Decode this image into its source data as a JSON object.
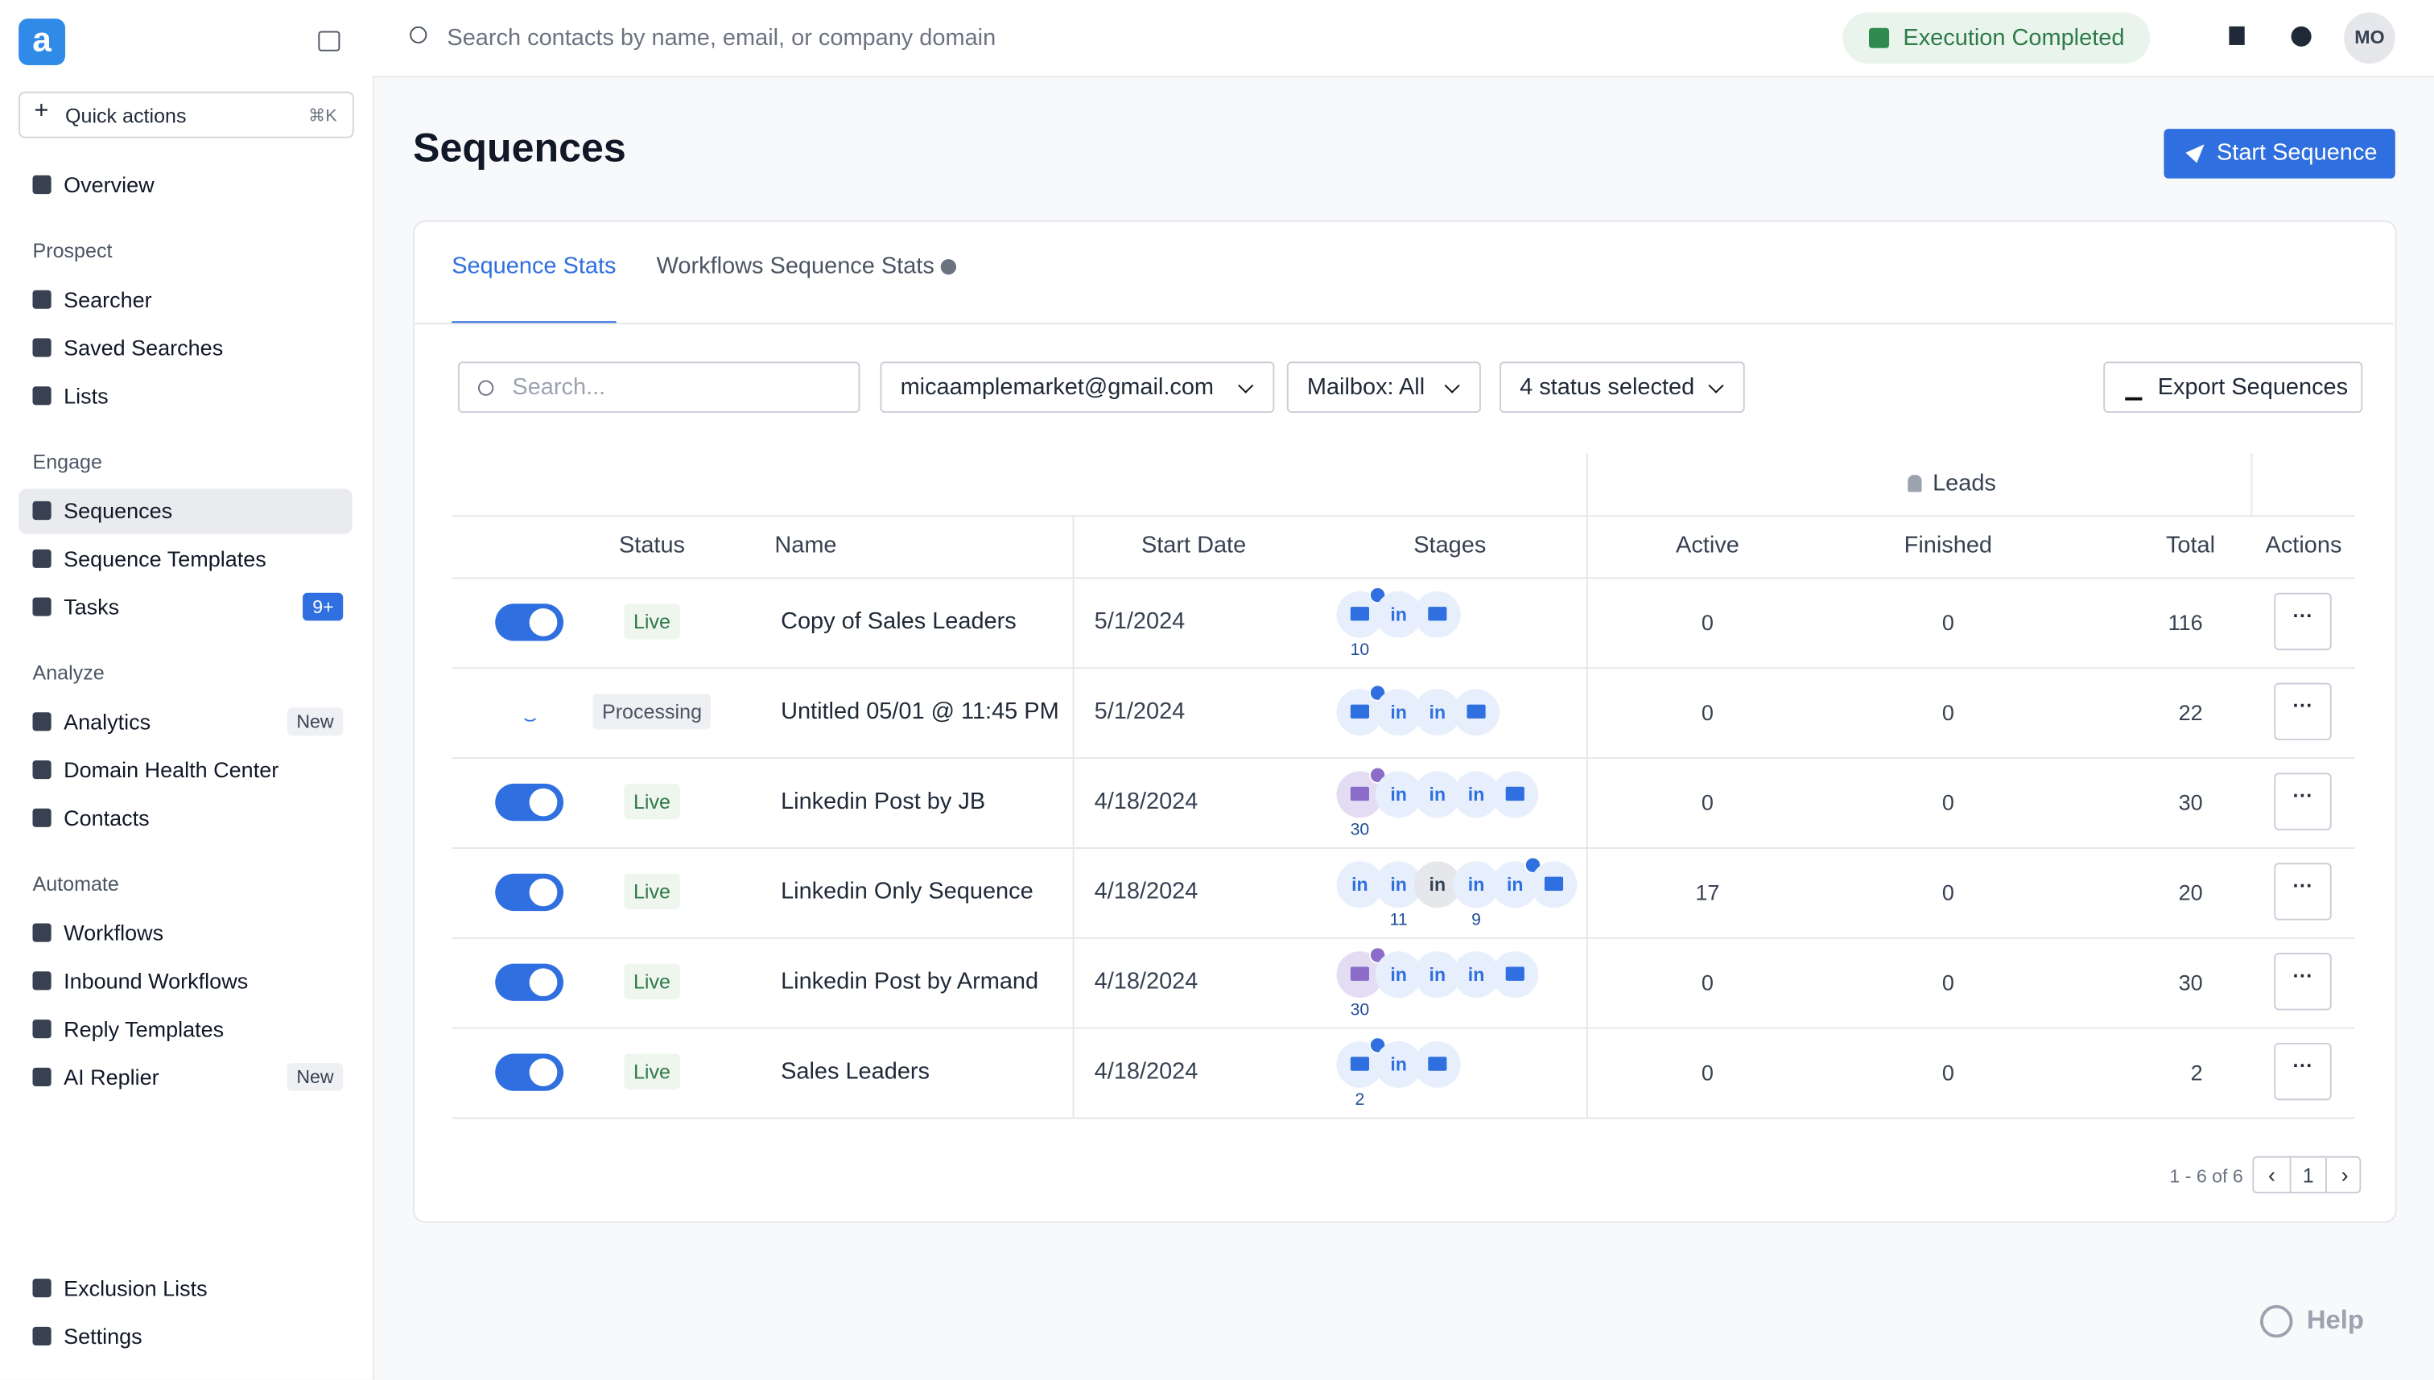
{
  "sidebar": {
    "logo": "a",
    "quick_actions": {
      "label": "Quick actions",
      "shortcut": "⌘K"
    },
    "top_items": [
      {
        "label": "Overview"
      }
    ],
    "sections": [
      {
        "title": "Prospect",
        "items": [
          {
            "label": "Searcher"
          },
          {
            "label": "Saved Searches"
          },
          {
            "label": "Lists"
          }
        ]
      },
      {
        "title": "Engage",
        "items": [
          {
            "label": "Sequences",
            "active": true
          },
          {
            "label": "Sequence Templates"
          },
          {
            "label": "Tasks",
            "badge": "9+",
            "badge_color": "#2f6fdf"
          }
        ]
      },
      {
        "title": "Analyze",
        "items": [
          {
            "label": "Analytics",
            "badge": "New",
            "badge_color": "#eef0f3"
          },
          {
            "label": "Domain Health Center"
          },
          {
            "label": "Contacts"
          }
        ]
      },
      {
        "title": "Automate",
        "items": [
          {
            "label": "Workflows"
          },
          {
            "label": "Inbound Workflows"
          },
          {
            "label": "Reply Templates"
          },
          {
            "label": "AI Replier",
            "badge": "New",
            "badge_color": "#eef0f3"
          }
        ]
      }
    ],
    "bottom_items": [
      {
        "label": "Exclusion Lists"
      },
      {
        "label": "Settings"
      }
    ]
  },
  "topbar": {
    "search_placeholder": "Search contacts by name, email, or company domain",
    "status": "Execution Completed",
    "avatar": "MO"
  },
  "page": {
    "title": "Sequences",
    "primary_button": "Start Sequence"
  },
  "tabs": [
    {
      "label": "Sequence Stats",
      "active": true
    },
    {
      "label": "Workflows Sequence Stats"
    }
  ],
  "filters": {
    "search_placeholder": "Search...",
    "mailbox_account": "micaamplemarket@gmail.com",
    "mailbox": "Mailbox: All",
    "status": "4 status selected",
    "export": "Export Sequences"
  },
  "table": {
    "group_header": "Leads",
    "columns": [
      "Status",
      "Name",
      "Start Date",
      "Stages",
      "Active",
      "Finished",
      "Total",
      "Actions"
    ],
    "rows": [
      {
        "enabled": true,
        "status": "Live",
        "name": "Copy of Sales Leaders",
        "start_date": "5/1/2024",
        "stages": [
          {
            "type": "email",
            "count": 10,
            "badge": true
          },
          {
            "type": "linkedin"
          },
          {
            "type": "email"
          }
        ],
        "active": 0,
        "finished": 0,
        "total": 116
      },
      {
        "enabled": false,
        "status": "Processing",
        "name": "Untitled 05/01 @ 11:45 PM",
        "start_date": "5/1/2024",
        "stages": [
          {
            "type": "email",
            "badge": true
          },
          {
            "type": "linkedin"
          },
          {
            "type": "linkedin"
          },
          {
            "type": "email"
          }
        ],
        "active": 0,
        "finished": 0,
        "total": 22
      },
      {
        "enabled": true,
        "status": "Live",
        "name": "Linkedin Post by JB",
        "start_date": "4/18/2024",
        "stages": [
          {
            "type": "email",
            "count": 30,
            "badge": true,
            "style": "purple"
          },
          {
            "type": "linkedin"
          },
          {
            "type": "linkedin"
          },
          {
            "type": "linkedin"
          },
          {
            "type": "email"
          }
        ],
        "active": 0,
        "finished": 0,
        "total": 30
      },
      {
        "enabled": true,
        "status": "Live",
        "name": "Linkedin Only Sequence",
        "start_date": "4/18/2024",
        "stages": [
          {
            "type": "linkedin"
          },
          {
            "type": "linkedin",
            "count": 11
          },
          {
            "type": "linkedin",
            "style": "grey"
          },
          {
            "type": "linkedin",
            "count": 9
          },
          {
            "type": "linkedin",
            "badge": true
          },
          {
            "type": "email"
          }
        ],
        "active": 17,
        "finished": 0,
        "total": 20
      },
      {
        "enabled": true,
        "status": "Live",
        "name": "Linkedin Post by Armand",
        "start_date": "4/18/2024",
        "stages": [
          {
            "type": "email",
            "count": 30,
            "badge": true,
            "style": "purple"
          },
          {
            "type": "linkedin"
          },
          {
            "type": "linkedin"
          },
          {
            "type": "linkedin"
          },
          {
            "type": "email"
          }
        ],
        "active": 0,
        "finished": 0,
        "total": 30
      },
      {
        "enabled": true,
        "status": "Live",
        "name": "Sales Leaders",
        "start_date": "4/18/2024",
        "stages": [
          {
            "type": "email",
            "count": 2,
            "badge": true
          },
          {
            "type": "linkedin"
          },
          {
            "type": "email"
          }
        ],
        "active": 0,
        "finished": 0,
        "total": 2
      }
    ]
  },
  "pagination": {
    "range": "1 - 6 of 6",
    "page": "1"
  },
  "help": "Help"
}
